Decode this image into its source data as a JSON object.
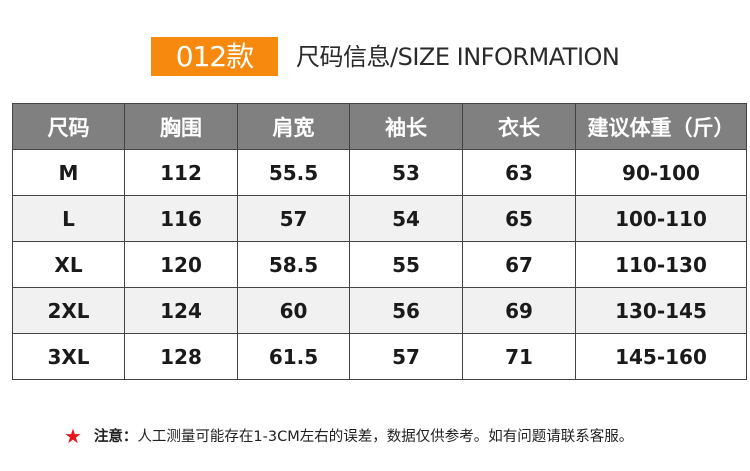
{
  "header": {
    "model": "012款",
    "title": "尺码信息/SIZE INFORMATION",
    "accent_color": "#f7890f"
  },
  "table": {
    "columns": [
      "尺码",
      "胸围",
      "肩宽",
      "袖长",
      "衣长",
      "建议体重（斤）"
    ],
    "rows": [
      [
        "M",
        "112",
        "55.5",
        "53",
        "63",
        "90-100"
      ],
      [
        "L",
        "116",
        "57",
        "54",
        "65",
        "100-110"
      ],
      [
        "XL",
        "120",
        "58.5",
        "55",
        "67",
        "110-130"
      ],
      [
        "2XL",
        "124",
        "60",
        "56",
        "69",
        "130-145"
      ],
      [
        "3XL",
        "128",
        "61.5",
        "57",
        "71",
        "145-160"
      ]
    ]
  },
  "note": {
    "icon": "star-icon",
    "label": "注意：",
    "text": "人工测量可能存在1-3CM左右的误差，数据仅供参考。如有问题请联系客服。"
  }
}
